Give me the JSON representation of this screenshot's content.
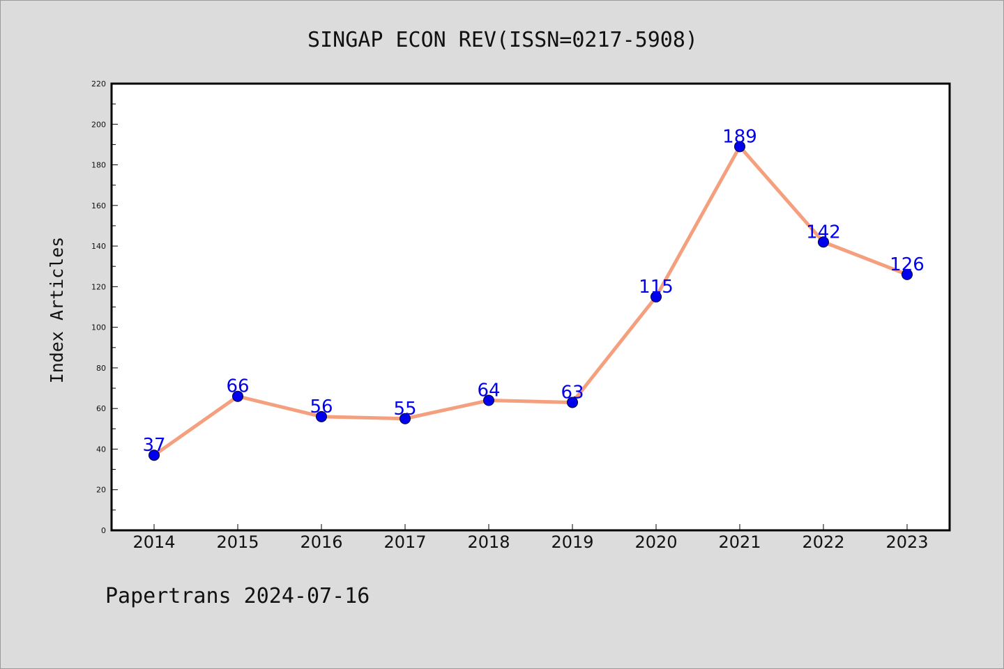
{
  "chart_data": {
    "type": "line",
    "title": "SINGAP ECON REV(ISSN=0217-5908)",
    "xlabel": "",
    "ylabel": "Index Articles",
    "categories": [
      "2014",
      "2015",
      "2016",
      "2017",
      "2018",
      "2019",
      "2020",
      "2021",
      "2022",
      "2023"
    ],
    "series": [
      {
        "values": [
          37,
          66,
          56,
          55,
          64,
          63,
          115,
          189,
          142,
          126
        ]
      }
    ],
    "ylim": [
      0,
      220
    ],
    "yticks": [
      "0",
      "20",
      "40",
      "60",
      "80",
      "100",
      "120",
      "140",
      "160",
      "180",
      "200",
      "220"
    ],
    "grid": false,
    "legend": "none",
    "colors": {
      "line": "#f4a07e",
      "marker": "#0000ee",
      "label": "#0000ee",
      "plot_background": "#ffffff",
      "page_background": "#dcdcdc"
    }
  },
  "footer": {
    "text": "Papertrans 2024-07-16"
  }
}
